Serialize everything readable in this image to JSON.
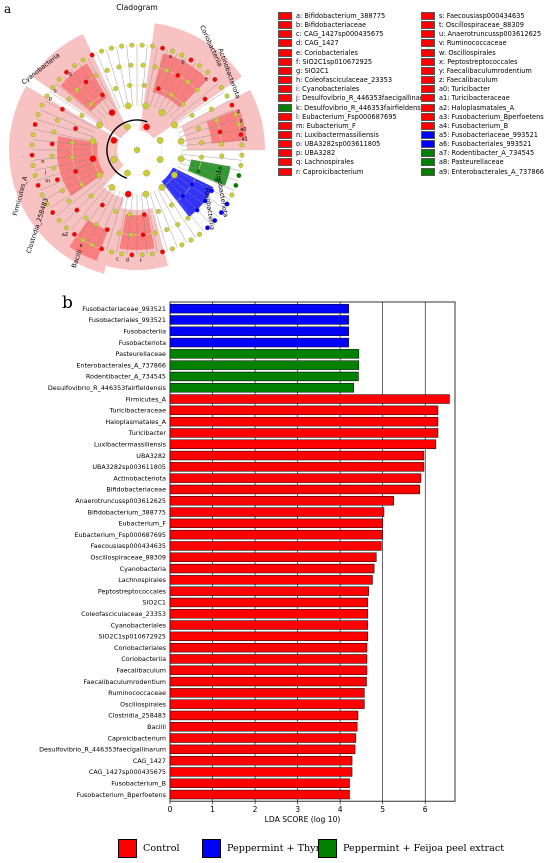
{
  "panel_a_label": "a",
  "panel_b_label": "b",
  "colors": {
    "control": "#ff0000",
    "thyme": "#0000ff",
    "feijoa": "#008000",
    "node": "#cccc33",
    "pale_red": "#f7b7b7"
  },
  "cladogram": {
    "title": "Cladogram",
    "clade_labels": [
      {
        "text": "Cyanobacteria",
        "color": "control"
      },
      {
        "text": "Coriobacteriia",
        "color": "control"
      },
      {
        "text": "Actinobacteriota",
        "color": "control"
      },
      {
        "text": "Fusobacteriota",
        "color": "thyme"
      },
      {
        "text": "Fusobacteriia",
        "color": "thyme"
      },
      {
        "text": "Bacilli",
        "color": "control"
      },
      {
        "text": "Clostridia_258483",
        "color": "control"
      },
      {
        "text": "Firmicutes_A",
        "color": "control"
      }
    ],
    "legend": [
      {
        "key": "a",
        "name": "Bifidobacterium_388775",
        "color": "control"
      },
      {
        "key": "b",
        "name": "Bifidobacteriaceae",
        "color": "control"
      },
      {
        "key": "c",
        "name": "CAG_1427sp000435675",
        "color": "control"
      },
      {
        "key": "d",
        "name": "CAG_1427",
        "color": "control"
      },
      {
        "key": "e",
        "name": "Coriobacteriales",
        "color": "control"
      },
      {
        "key": "f",
        "name": "SIO2C1sp010672925",
        "color": "control"
      },
      {
        "key": "g",
        "name": "SIO2C1",
        "color": "control"
      },
      {
        "key": "h",
        "name": "Coleofasciculaceae_23353",
        "color": "control"
      },
      {
        "key": "i",
        "name": "Cyanobacteriales",
        "color": "control"
      },
      {
        "key": "j",
        "name": "Desulfovibrio_R_446353faecigallinarum",
        "color": "control"
      },
      {
        "key": "k",
        "name": "Desulfovibrio_R_446353fairfieldensis",
        "color": "feijoa"
      },
      {
        "key": "l",
        "name": "Eubacterium_Fsp000687695",
        "color": "control"
      },
      {
        "key": "m",
        "name": "Eubacterium_F",
        "color": "control"
      },
      {
        "key": "n",
        "name": "Luxibactermassiliensis",
        "color": "control"
      },
      {
        "key": "o",
        "name": "UBA3282sp003611805",
        "color": "control"
      },
      {
        "key": "p",
        "name": "UBA3282",
        "color": "control"
      },
      {
        "key": "q",
        "name": "Lachnospirales",
        "color": "control"
      },
      {
        "key": "r",
        "name": "Caproicibacterium",
        "color": "control"
      },
      {
        "key": "s",
        "name": "Faecousiasp000434635",
        "color": "control"
      },
      {
        "key": "t",
        "name": "Oscillospiraceae_88309",
        "color": "control"
      },
      {
        "key": "u",
        "name": "Anaerotruncussp003612625",
        "color": "control"
      },
      {
        "key": "v",
        "name": "Ruminococcaceae",
        "color": "control"
      },
      {
        "key": "w",
        "name": "Oscillospirales",
        "color": "control"
      },
      {
        "key": "x",
        "name": "Peptostreptococcales",
        "color": "control"
      },
      {
        "key": "y",
        "name": "Faecalibaculumrodentium",
        "color": "control"
      },
      {
        "key": "z",
        "name": "Faecalibaculum",
        "color": "control"
      },
      {
        "key": "a0",
        "name": "Turicibacter",
        "color": "control"
      },
      {
        "key": "a1",
        "name": "Turicibacteraceae",
        "color": "control"
      },
      {
        "key": "a2",
        "name": "Haloplasmatales_A",
        "color": "control"
      },
      {
        "key": "a3",
        "name": "Fusobacterium_Bperfoetens",
        "color": "control"
      },
      {
        "key": "a4",
        "name": "Fusobacterium_B",
        "color": "control"
      },
      {
        "key": "a5",
        "name": "Fusobacteriaceae_993521",
        "color": "thyme"
      },
      {
        "key": "a6",
        "name": "Fusobacteriales_993521",
        "color": "thyme"
      },
      {
        "key": "a7",
        "name": "Rodentibacter_A_734545",
        "color": "feijoa"
      },
      {
        "key": "a8",
        "name": "Pasteurellaceae",
        "color": "feijoa"
      },
      {
        "key": "a9",
        "name": "Enterobacterales_A_737866",
        "color": "feijoa"
      }
    ],
    "inner_letters": [
      "m",
      "l",
      "n",
      "p",
      "o",
      "q",
      "a",
      "b",
      "e",
      "z",
      "y",
      "a0",
      "a1",
      "a2",
      "x",
      "r",
      "d",
      "c"
    ]
  },
  "chart_data": {
    "type": "bar",
    "orientation": "horizontal",
    "xlabel": "LDA SCORE (log 10)",
    "xlim": [
      0,
      6.7
    ],
    "xticks": [
      0,
      1,
      2,
      3,
      4,
      5,
      6
    ],
    "grid": "vertical",
    "legend_position": "bottom",
    "groups": [
      {
        "key": "control",
        "name": "Control"
      },
      {
        "key": "thyme",
        "name": "Peppermint + Thyme"
      },
      {
        "key": "feijoa",
        "name": "Peppermint + Feijoa peel extract"
      }
    ],
    "bars": [
      {
        "name": "Fusobacteriaceae_993521",
        "value": 4.2,
        "group": "thyme"
      },
      {
        "name": "Fusobacteriales_993521",
        "value": 4.2,
        "group": "thyme"
      },
      {
        "name": "Fusobacteriia",
        "value": 4.2,
        "group": "thyme"
      },
      {
        "name": "Fusobacteriota",
        "value": 4.2,
        "group": "thyme"
      },
      {
        "name": "Pasteurellaceae",
        "value": 4.44,
        "group": "feijoa"
      },
      {
        "name": "Enterobacterales_A_737866",
        "value": 4.44,
        "group": "feijoa"
      },
      {
        "name": "Rodentibacter_A_734545",
        "value": 4.43,
        "group": "feijoa"
      },
      {
        "name": "Desulfovibrio_R_446353fairfieldensis",
        "value": 4.32,
        "group": "feijoa"
      },
      {
        "name": "Firmicutes_A",
        "value": 6.57,
        "group": "control"
      },
      {
        "name": "Turicibacteraceae",
        "value": 6.3,
        "group": "control"
      },
      {
        "name": "Haloplasmatales_A",
        "value": 6.3,
        "group": "control"
      },
      {
        "name": "Turicibacter",
        "value": 6.3,
        "group": "control"
      },
      {
        "name": "Luxibactermassiliensis",
        "value": 6.25,
        "group": "control"
      },
      {
        "name": "UBA3282",
        "value": 5.97,
        "group": "control"
      },
      {
        "name": "UBA3282sp003611805",
        "value": 5.97,
        "group": "control"
      },
      {
        "name": "Actinobacteriota",
        "value": 5.9,
        "group": "control"
      },
      {
        "name": "Bifidobacteriaceae",
        "value": 5.87,
        "group": "control"
      },
      {
        "name": "Anaerotruncussp003612625",
        "value": 5.26,
        "group": "control"
      },
      {
        "name": "Bifidobacterium_388775",
        "value": 5.03,
        "group": "control"
      },
      {
        "name": "Eubacterium_F",
        "value": 5.0,
        "group": "control"
      },
      {
        "name": "Eubacterium_Fsp000687695",
        "value": 5.0,
        "group": "control"
      },
      {
        "name": "Faecousiasp000434635",
        "value": 4.97,
        "group": "control"
      },
      {
        "name": "Oscillospiraceae_88309",
        "value": 4.85,
        "group": "control"
      },
      {
        "name": "Cyanobacteria",
        "value": 4.8,
        "group": "control"
      },
      {
        "name": "Lachnospirales",
        "value": 4.76,
        "group": "control"
      },
      {
        "name": "Peptostreptococcales",
        "value": 4.67,
        "group": "control"
      },
      {
        "name": "SIO2C1",
        "value": 4.65,
        "group": "control"
      },
      {
        "name": "Coleofasciculaceae_23353",
        "value": 4.65,
        "group": "control"
      },
      {
        "name": "Cyanobacteriales",
        "value": 4.65,
        "group": "control"
      },
      {
        "name": "SIO2C1sp010672925",
        "value": 4.65,
        "group": "control"
      },
      {
        "name": "Coriobacteriales",
        "value": 4.63,
        "group": "control"
      },
      {
        "name": "Coriobacteriia",
        "value": 4.63,
        "group": "control"
      },
      {
        "name": "Faecalibaculum",
        "value": 4.63,
        "group": "control"
      },
      {
        "name": "Faecalibaculumrodentium",
        "value": 4.62,
        "group": "control"
      },
      {
        "name": "Ruminococcaceae",
        "value": 4.57,
        "group": "control"
      },
      {
        "name": "Oscillospirales",
        "value": 4.57,
        "group": "control"
      },
      {
        "name": "Clostridia_258483",
        "value": 4.42,
        "group": "control"
      },
      {
        "name": "Bacilli",
        "value": 4.4,
        "group": "control"
      },
      {
        "name": "Caproicibacterium",
        "value": 4.37,
        "group": "control"
      },
      {
        "name": "Desulfovibrio_R_446353faecigallinarum",
        "value": 4.35,
        "group": "control"
      },
      {
        "name": "CAG_1427",
        "value": 4.28,
        "group": "control"
      },
      {
        "name": "CAG_1427sp000435675",
        "value": 4.28,
        "group": "control"
      },
      {
        "name": "Fusobacterium_B",
        "value": 4.22,
        "group": "control"
      },
      {
        "name": "Fusobacterium_Bperfoetens",
        "value": 4.22,
        "group": "control"
      }
    ]
  }
}
